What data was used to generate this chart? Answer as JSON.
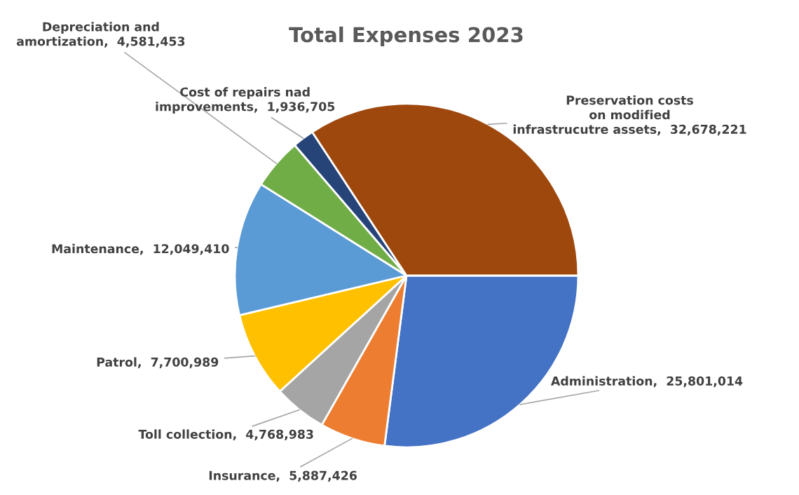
{
  "chart_data": {
    "type": "pie",
    "title": "Total Expenses 2023",
    "categories": [
      "Administration",
      "Insurance",
      "Toll collection",
      "Patrol",
      "Maintenance",
      "Depreciation and\namortization",
      "Cost of repairs nad\nimprovements",
      "Preservation costs\non modified\ninfrastrucutre assets"
    ],
    "values": [
      25801014,
      5887426,
      4768983,
      7700989,
      12049410,
      4581453,
      1936705,
      32678221
    ],
    "value_labels": [
      "25,801,014",
      "5,887,426",
      "4,768,983",
      "7,700,989",
      "12,049,410",
      "4,581,453",
      "1,936,705",
      "32,678,221"
    ],
    "colors": [
      "#4472c4",
      "#ed7d31",
      "#a5a5a5",
      "#ffc000",
      "#5b9bd5",
      "#70ad47",
      "#264478",
      "#9e480e"
    ]
  }
}
